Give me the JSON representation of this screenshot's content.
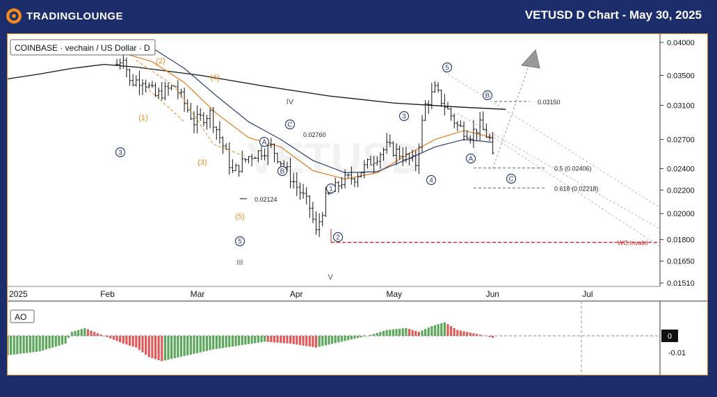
{
  "header": {
    "brand_name": "TRADINGLOUNGE",
    "chart_title": "VETUSD D Chart - May 30, 2025"
  },
  "legend": {
    "symbol_info": "COINBASE · vechain / US Dollar · D",
    "watermark": "VETUSD"
  },
  "colors": {
    "background": "#1c2d6b",
    "accent_orange": "#f08a1c",
    "candles": "#111111",
    "ma_200": "#111111",
    "ema_orange": "#e07b20",
    "ema_blue": "#2c3e6e",
    "wave_label_blue": "#2c3e6e",
    "wave_label_orange": "#f08a1c",
    "invalid_line": "#d62424",
    "fib_lines": "#999999",
    "ao_up": "#5aa85a",
    "ao_down": "#e05a5a"
  },
  "chart_data": [
    {
      "type": "candlestick",
      "title": "VETUSD D",
      "y_scale": "log",
      "ylim": [
        0.0151,
        0.041
      ],
      "y_ticks": [
        "0.04000",
        "0.03500",
        "0.03100",
        "0.02700",
        "0.02400",
        "0.02200",
        "0.02000",
        "0.01800",
        "0.01650",
        "0.01510"
      ],
      "x_ticks": [
        "2025",
        "Feb",
        "Mar",
        "Apr",
        "May",
        "Jun",
        "Jul"
      ],
      "price_annotations": [
        {
          "label": "0.02760",
          "value": 0.0276
        },
        {
          "label": "0.02124",
          "value": 0.02124
        },
        {
          "label": "0.03150",
          "value": 0.0315
        },
        {
          "label": "0.5 (0.02406)",
          "value": 0.02406
        },
        {
          "label": "0.618 (0.02218)",
          "value": 0.02218
        },
        {
          "label": "WC.Invalid",
          "value": 0.0178
        }
      ],
      "wave_labels": [
        {
          "text": "1",
          "style": "circled"
        },
        {
          "text": "2",
          "style": "circled"
        },
        {
          "text": "3",
          "style": "circled"
        },
        {
          "text": "4",
          "style": "circled"
        },
        {
          "text": "5",
          "style": "circled"
        },
        {
          "text": "A",
          "style": "circled"
        },
        {
          "text": "B",
          "style": "circled"
        },
        {
          "text": "C",
          "style": "circled"
        },
        {
          "text": "(1)",
          "style": "parenthesized"
        },
        {
          "text": "(2)",
          "style": "parenthesized"
        },
        {
          "text": "(3)",
          "style": "parenthesized"
        },
        {
          "text": "(4)",
          "style": "parenthesized"
        },
        {
          "text": "(5)",
          "style": "parenthesized"
        },
        {
          "text": "III",
          "style": "roman"
        },
        {
          "text": "IV",
          "style": "roman"
        },
        {
          "text": "V",
          "style": "roman"
        }
      ],
      "overlays": [
        "200-day moving average",
        "orange EMA",
        "blue EMA",
        "descending parallel channel"
      ],
      "grid": false
    },
    {
      "type": "bar",
      "title": "AO",
      "y_ticks": [
        "0",
        "-0.01"
      ],
      "current_value_label": "0",
      "ylim": [
        -0.0125,
        0.0075
      ]
    }
  ]
}
